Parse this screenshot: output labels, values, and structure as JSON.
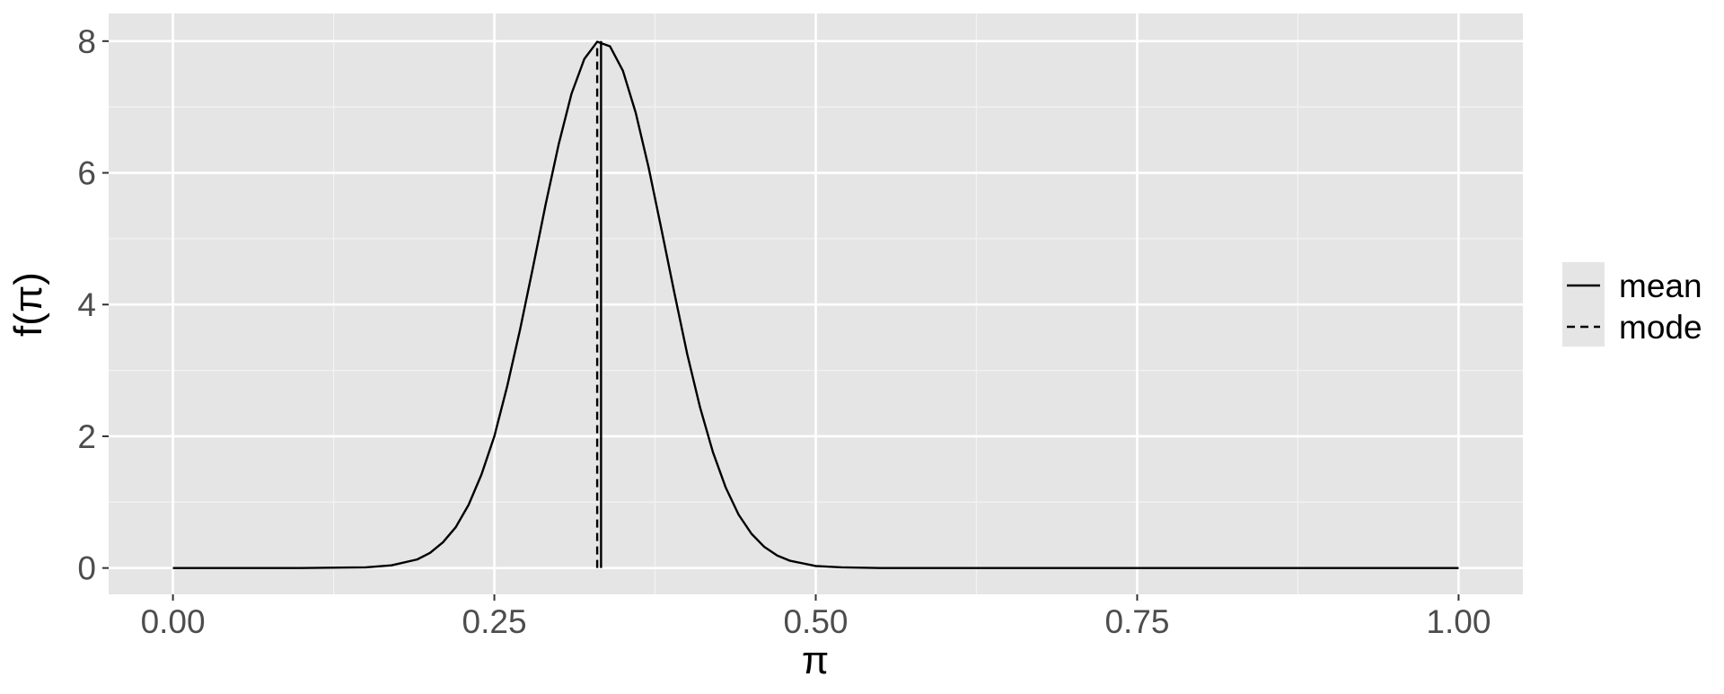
{
  "chart_data": {
    "type": "line",
    "x_label": "π",
    "y_label": "f(π)",
    "x": [
      0,
      0.1,
      0.15,
      0.17,
      0.19,
      0.2,
      0.21,
      0.22,
      0.23,
      0.24,
      0.25,
      0.26,
      0.27,
      0.28,
      0.29,
      0.3,
      0.31,
      0.32,
      0.33,
      0.34,
      0.35,
      0.36,
      0.37,
      0.38,
      0.39,
      0.4,
      0.41,
      0.42,
      0.43,
      0.44,
      0.45,
      0.46,
      0.47,
      0.48,
      0.5,
      0.52,
      0.55,
      1
    ],
    "series": [
      {
        "color": "#000000",
        "values": [
          0,
          0,
          0.01,
          0.04,
          0.13,
          0.23,
          0.39,
          0.62,
          0.96,
          1.42,
          2.0,
          2.76,
          3.62,
          4.56,
          5.53,
          6.43,
          7.2,
          7.73,
          7.99,
          7.92,
          7.55,
          6.91,
          6.08,
          5.14,
          4.18,
          3.25,
          2.44,
          1.76,
          1.22,
          0.81,
          0.52,
          0.32,
          0.19,
          0.11,
          0.03,
          0.01,
          0,
          0
        ]
      }
    ],
    "vlines": [
      {
        "name": "mean",
        "x": 0.333,
        "y": 8.0,
        "dash": false
      },
      {
        "name": "mode",
        "x": 0.33,
        "y": 8.0,
        "dash": true
      }
    ],
    "xlim": [
      -0.05,
      1.05
    ],
    "xticks": [
      {
        "value": 0,
        "label": "0.00"
      },
      {
        "value": 0.25,
        "label": "0.25"
      },
      {
        "value": 0.5,
        "label": "0.50"
      },
      {
        "value": 0.75,
        "label": "0.75"
      },
      {
        "value": 1,
        "label": "1.00"
      }
    ],
    "ylim": [
      -0.4,
      8.42
    ],
    "yticks": [
      0,
      2,
      4,
      6,
      8
    ],
    "grid": true,
    "minor_grid": true,
    "legend": "right"
  }
}
